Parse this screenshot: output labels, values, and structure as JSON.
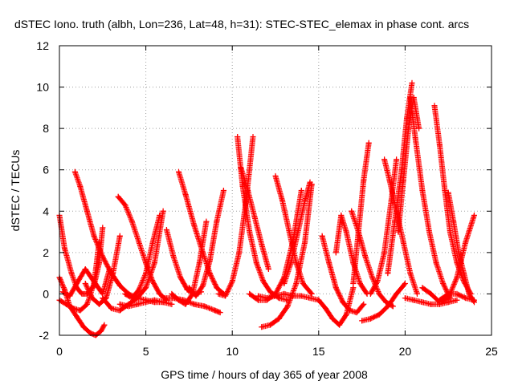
{
  "chart_data": {
    "type": "scatter",
    "title": "dSTEC Iono. truth (albh, Lon=236, Lat=48, h=31): STEC-STEC_elemax in phase cont. arcs",
    "xlabel": "GPS time / hours of day 365 of year 2008",
    "ylabel": "dSTEC  / TECUs",
    "xlim": [
      0,
      25
    ],
    "ylim": [
      -2,
      12
    ],
    "xticks": [
      0,
      5,
      10,
      15,
      20,
      25
    ],
    "yticks": [
      -2,
      0,
      2,
      4,
      6,
      8,
      10,
      12
    ],
    "grid": true,
    "marker": "+",
    "marker_color": "#ff0000",
    "series": [
      {
        "x": [
          0.0,
          0.3,
          0.7,
          1.0,
          1.3,
          1.6,
          2.0,
          2.3,
          2.5
        ],
        "y": [
          3.8,
          2.2,
          1.0,
          0.3,
          0.0,
          0.0,
          0.4,
          1.5,
          3.2
        ]
      },
      {
        "x": [
          0.0,
          0.3,
          0.6,
          1.0,
          1.4,
          1.8,
          2.1,
          2.4,
          2.6
        ],
        "y": [
          0.8,
          0.2,
          -0.6,
          -1.1,
          -1.6,
          -1.9,
          -2.0,
          -1.8,
          -1.5
        ]
      },
      {
        "x": [
          0.0,
          0.4,
          0.8,
          1.2,
          1.6,
          2.0,
          2.3
        ],
        "y": [
          -0.3,
          -0.5,
          -0.7,
          -0.8,
          -0.5,
          0.5,
          2.5
        ]
      },
      {
        "x": [
          0.2,
          0.6,
          1.0,
          1.5,
          2.0,
          2.5,
          2.9
        ],
        "y": [
          0.1,
          -0.1,
          0.5,
          1.2,
          0.6,
          0.0,
          1.2
        ]
      },
      {
        "x": [
          0.9,
          1.2,
          1.6,
          2.0,
          2.5,
          3.0,
          3.5,
          4.0,
          4.5,
          5.0,
          5.5,
          6.0
        ],
        "y": [
          5.9,
          5.2,
          4.0,
          2.8,
          1.8,
          1.0,
          0.4,
          0.0,
          -0.2,
          -0.3,
          -0.4,
          -0.4
        ]
      },
      {
        "x": [
          1.5,
          1.9,
          2.3,
          2.7,
          3.1,
          3.5
        ],
        "y": [
          0.5,
          -0.2,
          -0.5,
          -0.2,
          1.0,
          2.8
        ]
      },
      {
        "x": [
          3.4,
          3.8,
          4.2,
          4.6,
          5.0,
          5.4,
          5.8,
          6.2
        ],
        "y": [
          4.7,
          4.3,
          3.5,
          2.5,
          1.5,
          0.6,
          0.0,
          -0.3
        ]
      },
      {
        "x": [
          2.5,
          3.0,
          3.5,
          4.0,
          4.5,
          5.0,
          5.5,
          6.0
        ],
        "y": [
          -0.2,
          -0.7,
          -0.8,
          -0.5,
          -0.2,
          0.3,
          1.5,
          4.0
        ]
      },
      {
        "x": [
          3.5,
          4.0,
          4.5,
          5.0,
          5.5,
          6.0,
          6.5
        ],
        "y": [
          -0.5,
          -0.6,
          -0.5,
          -0.4,
          -0.3,
          -0.4,
          -0.5
        ]
      },
      {
        "x": [
          3.8,
          4.2,
          4.6,
          5.0,
          5.4,
          5.8
        ],
        "y": [
          0.0,
          -0.2,
          0.2,
          1.0,
          2.5,
          3.8
        ]
      },
      {
        "x": [
          6.2,
          6.6,
          7.0,
          7.4,
          7.8,
          8.2
        ],
        "y": [
          3.1,
          1.8,
          0.8,
          0.2,
          0.0,
          0.1
        ]
      },
      {
        "x": [
          6.9,
          7.3,
          7.8,
          8.3,
          8.7,
          9.1,
          9.5
        ],
        "y": [
          5.9,
          4.8,
          3.3,
          2.0,
          1.0,
          0.3,
          0.0
        ]
      },
      {
        "x": [
          6.5,
          6.9,
          7.3,
          7.7,
          8.1,
          8.5
        ],
        "y": [
          0.0,
          -0.3,
          -0.5,
          0.0,
          1.5,
          3.5
        ]
      },
      {
        "x": [
          6.0,
          6.6,
          7.2,
          7.8,
          8.4,
          9.0,
          9.3
        ],
        "y": [
          -0.2,
          -0.2,
          -0.3,
          -0.5,
          -0.6,
          -0.8,
          -0.9
        ]
      },
      {
        "x": [
          7.5,
          7.9,
          8.3,
          8.7,
          9.1,
          9.5
        ],
        "y": [
          0.3,
          -0.1,
          0.4,
          1.6,
          3.5,
          5.0
        ]
      },
      {
        "x": [
          9.2,
          9.6,
          10.0,
          10.4,
          10.8,
          11.2
        ],
        "y": [
          0.0,
          -0.1,
          0.6,
          2.0,
          4.5,
          7.6
        ]
      },
      {
        "x": [
          10.3,
          10.6,
          11.0,
          11.4,
          11.8,
          12.2,
          12.7,
          13.2
        ],
        "y": [
          7.6,
          5.2,
          3.0,
          1.5,
          0.6,
          0.1,
          -0.2,
          -0.3
        ]
      },
      {
        "x": [
          10.5,
          10.9,
          11.3,
          11.7,
          12.1
        ],
        "y": [
          6.1,
          5.0,
          3.7,
          2.4,
          1.2
        ]
      },
      {
        "x": [
          11.0,
          11.5,
          12.0,
          12.5,
          13.0,
          13.5,
          14.0
        ],
        "y": [
          0.0,
          -0.3,
          -0.3,
          0.0,
          0.8,
          2.5,
          5.0
        ]
      },
      {
        "x": [
          12.5,
          12.9,
          13.3,
          13.7,
          14.1,
          14.6
        ],
        "y": [
          5.7,
          4.5,
          3.0,
          1.5,
          0.5,
          0.0
        ]
      },
      {
        "x": [
          11.5,
          12.0,
          12.5,
          13.0,
          13.5,
          14.0,
          14.5,
          15.0
        ],
        "y": [
          -0.1,
          -0.2,
          -0.1,
          0.0,
          -0.1,
          -0.1,
          -0.2,
          -0.3
        ]
      },
      {
        "x": [
          11.7,
          12.2,
          12.7,
          13.2,
          13.7,
          14.2,
          14.6
        ],
        "y": [
          -1.6,
          -1.5,
          -1.2,
          -0.6,
          0.5,
          2.5,
          5.3
        ]
      },
      {
        "x": [
          13.0,
          13.4,
          13.8,
          14.2,
          14.5
        ],
        "y": [
          0.5,
          1.5,
          3.0,
          4.5,
          5.4
        ]
      },
      {
        "x": [
          15.2,
          15.6,
          16.0,
          16.4,
          16.8,
          17.2,
          17.6
        ],
        "y": [
          2.8,
          1.5,
          0.3,
          -0.4,
          -0.8,
          -0.9,
          -0.5
        ]
      },
      {
        "x": [
          15.0,
          15.4,
          15.8,
          16.2,
          16.6,
          17.0
        ],
        "y": [
          -0.3,
          -0.7,
          -1.2,
          -1.5,
          -1.0,
          0.3
        ]
      },
      {
        "x": [
          16.0,
          16.3,
          16.6,
          17.0,
          17.4,
          17.8
        ],
        "y": [
          2.0,
          3.8,
          3.0,
          1.5,
          0.5,
          0.0
        ]
      },
      {
        "x": [
          16.9,
          17.3,
          17.7,
          18.1,
          18.5,
          18.9,
          19.3
        ],
        "y": [
          4.0,
          3.0,
          1.8,
          0.8,
          0.0,
          -0.4,
          -0.6
        ]
      },
      {
        "x": [
          17.0,
          17.3,
          17.6,
          17.9
        ],
        "y": [
          0.5,
          3.0,
          5.5,
          7.3
        ]
      },
      {
        "x": [
          17.5,
          18.0,
          18.5,
          19.0,
          19.5,
          20.0
        ],
        "y": [
          -1.3,
          -1.2,
          -1.0,
          -0.6,
          0.0,
          0.5
        ]
      },
      {
        "x": [
          18.0,
          18.4,
          18.8,
          19.2,
          19.5
        ],
        "y": [
          0.0,
          0.6,
          2.0,
          4.5,
          6.5
        ]
      },
      {
        "x": [
          18.8,
          19.1,
          19.5,
          19.9,
          20.3,
          20.7
        ],
        "y": [
          6.5,
          5.5,
          4.0,
          2.5,
          1.0,
          0.0
        ]
      },
      {
        "x": [
          19.0,
          19.4,
          19.8,
          20.1,
          20.4
        ],
        "y": [
          1.0,
          3.5,
          6.0,
          8.5,
          10.2
        ]
      },
      {
        "x": [
          19.6,
          19.9,
          20.2,
          20.5,
          20.8
        ],
        "y": [
          3.0,
          5.5,
          8.0,
          9.5,
          8.0
        ]
      },
      {
        "x": [
          20.3,
          20.6,
          21.0,
          21.4,
          21.8,
          22.2,
          22.6
        ],
        "y": [
          9.5,
          7.5,
          5.0,
          3.0,
          1.5,
          0.5,
          -0.2
        ]
      },
      {
        "x": [
          20.0,
          20.5,
          21.0,
          21.5,
          22.0,
          22.5,
          23.0
        ],
        "y": [
          -0.2,
          -0.3,
          -0.4,
          -0.5,
          -0.5,
          -0.4,
          -0.3
        ]
      },
      {
        "x": [
          21.7,
          22.0,
          22.3,
          22.6,
          23.0,
          23.4,
          23.8
        ],
        "y": [
          9.1,
          7.2,
          5.0,
          3.0,
          1.5,
          0.6,
          0.0
        ]
      },
      {
        "x": [
          21.0,
          21.5,
          22.0,
          22.5,
          23.0,
          23.5,
          24.0
        ],
        "y": [
          0.3,
          0.0,
          -0.4,
          -0.2,
          0.8,
          2.5,
          3.8
        ]
      },
      {
        "x": [
          22.5,
          22.8,
          23.1,
          23.4,
          23.7,
          24.0
        ],
        "y": [
          4.9,
          3.5,
          2.0,
          1.0,
          0.0,
          -0.4
        ]
      },
      {
        "x": [
          22.0,
          22.5,
          23.0,
          23.5,
          24.0
        ],
        "y": [
          -0.3,
          0.0,
          0.0,
          -0.2,
          -0.3
        ]
      }
    ]
  }
}
